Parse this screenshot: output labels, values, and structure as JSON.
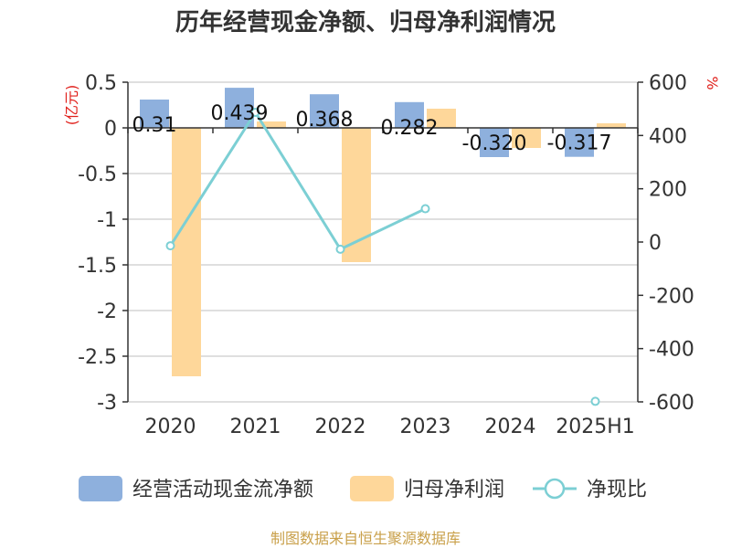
{
  "title": "历年经营现金净额、归母净利润情况",
  "source": "制图数据来自恒生聚源数据库",
  "colors": {
    "cashflow": "#8eb0dd",
    "profit": "#fed79a",
    "ratio": "#7ccfd4",
    "axis": "#333333",
    "grid": "#cccccc",
    "unit": "#e0201b",
    "source": "#c9a04a"
  },
  "chart_data": {
    "type": "bar",
    "categories": [
      "2020",
      "2021",
      "2022",
      "2023",
      "2024",
      "2025H1"
    ],
    "left_axis": {
      "label": "(亿元)",
      "ylim": [
        -3,
        0.5
      ],
      "ticks": [
        "0.5",
        "0",
        "-0.5",
        "-1",
        "-1.5",
        "-2",
        "-2.5",
        "-3"
      ]
    },
    "right_axis": {
      "label": "%",
      "ylim": [
        -600,
        600
      ],
      "ticks": [
        "600",
        "400",
        "200",
        "0",
        "-200",
        "-400",
        "-600"
      ]
    },
    "series": [
      {
        "name": "经营活动现金流净额",
        "type": "bar",
        "axis": "left",
        "values": [
          0.31,
          0.439,
          0.368,
          0.282,
          -0.32,
          -0.317
        ],
        "labels": [
          "0.31",
          "0.439",
          "0.368",
          "0.282",
          "-0.320",
          "-0.317"
        ]
      },
      {
        "name": "归母净利润",
        "type": "bar",
        "axis": "left",
        "values": [
          -2.72,
          0.07,
          -1.47,
          0.21,
          -0.22,
          0.05
        ]
      },
      {
        "name": "净现比",
        "type": "line",
        "axis": "right",
        "values": [
          -14,
          487,
          -27,
          125,
          null,
          -598
        ]
      }
    ],
    "grid": true,
    "legend_position": "bottom"
  }
}
